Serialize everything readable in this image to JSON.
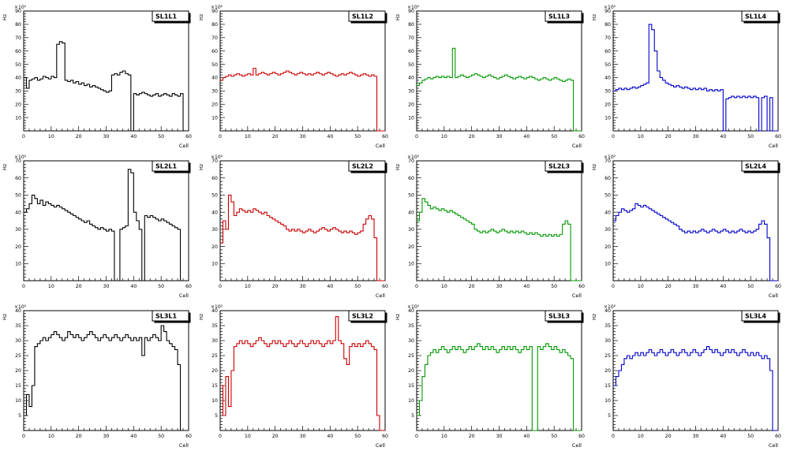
{
  "page": {
    "background": "#ffffff"
  },
  "axis": {
    "xlabel": "Cell",
    "ylabel": "Hz",
    "exponent": "×10²",
    "xlim": [
      0,
      60
    ],
    "xtick_step": 10,
    "grid": false,
    "legend": "none"
  },
  "chart_data": [
    {
      "type": "line",
      "style": "step-histogram",
      "title": "SL1L1",
      "color": "#000000",
      "xlabel": "Cell",
      "ylabel": "Hz",
      "xlim": [
        0,
        60
      ],
      "ylim": [
        0,
        90
      ],
      "ytick_step": 10,
      "values": [
        40,
        32,
        38,
        39,
        40,
        38,
        39,
        41,
        40,
        39,
        41,
        40,
        65,
        67,
        66,
        38,
        37,
        38,
        36,
        37,
        35,
        36,
        34,
        35,
        33,
        34,
        33,
        32,
        31,
        30,
        29,
        30,
        42,
        43,
        42,
        44,
        45,
        43,
        42,
        0,
        28,
        27,
        28,
        29,
        28,
        27,
        26,
        27,
        28,
        26,
        27,
        28,
        27,
        26,
        28,
        27,
        26,
        28,
        0,
        0
      ]
    },
    {
      "type": "line",
      "style": "step-histogram",
      "title": "SL1L2",
      "color": "#cc0000",
      "xlabel": "Cell",
      "ylabel": "Hz",
      "xlim": [
        0,
        60
      ],
      "ylim": [
        0,
        90
      ],
      "ytick_step": 10,
      "values": [
        38,
        40,
        41,
        42,
        41,
        42,
        43,
        42,
        41,
        42,
        43,
        42,
        47,
        42,
        43,
        44,
        43,
        42,
        43,
        44,
        43,
        42,
        43,
        44,
        45,
        44,
        43,
        42,
        43,
        44,
        43,
        42,
        43,
        42,
        43,
        44,
        43,
        42,
        43,
        44,
        43,
        42,
        41,
        42,
        43,
        42,
        43,
        44,
        43,
        42,
        41,
        42,
        43,
        42,
        41,
        42,
        41,
        0,
        0,
        0
      ]
    },
    {
      "type": "line",
      "style": "step-histogram",
      "title": "SL1L3",
      "color": "#009900",
      "xlabel": "Cell",
      "ylabel": "Hz",
      "xlim": [
        0,
        60
      ],
      "ylim": [
        0,
        90
      ],
      "ytick_step": 10,
      "values": [
        34,
        36,
        38,
        39,
        40,
        39,
        40,
        41,
        40,
        41,
        40,
        41,
        40,
        62,
        40,
        41,
        42,
        41,
        40,
        41,
        42,
        43,
        42,
        41,
        40,
        41,
        42,
        41,
        40,
        39,
        40,
        41,
        42,
        41,
        40,
        39,
        40,
        41,
        40,
        39,
        40,
        41,
        40,
        39,
        38,
        39,
        40,
        39,
        38,
        39,
        40,
        39,
        38,
        37,
        38,
        39,
        38,
        0,
        0,
        0
      ]
    },
    {
      "type": "line",
      "style": "step-histogram",
      "title": "SL1L4",
      "color": "#0000cc",
      "xlabel": "Cell",
      "ylabel": "Hz",
      "xlim": [
        0,
        60
      ],
      "ylim": [
        0,
        90
      ],
      "ytick_step": 10,
      "values": [
        30,
        31,
        32,
        31,
        32,
        31,
        32,
        33,
        32,
        33,
        34,
        35,
        36,
        80,
        76,
        60,
        45,
        40,
        38,
        36,
        35,
        34,
        33,
        34,
        33,
        32,
        33,
        32,
        31,
        32,
        31,
        32,
        31,
        32,
        30,
        31,
        30,
        31,
        30,
        31,
        0,
        24,
        25,
        26,
        25,
        26,
        25,
        26,
        25,
        26,
        25,
        26,
        25,
        0,
        25,
        26,
        0,
        25,
        0,
        0
      ]
    },
    {
      "type": "line",
      "style": "step-histogram",
      "title": "SL2L1",
      "color": "#000000",
      "xlabel": "Cell",
      "ylabel": "Hz",
      "xlim": [
        0,
        60
      ],
      "ylim": [
        0,
        70
      ],
      "ytick_step": 10,
      "values": [
        40,
        42,
        45,
        50,
        48,
        45,
        47,
        44,
        46,
        45,
        44,
        43,
        44,
        43,
        42,
        41,
        40,
        39,
        38,
        37,
        36,
        35,
        34,
        35,
        33,
        32,
        31,
        30,
        31,
        30,
        29,
        30,
        29,
        0,
        0,
        30,
        31,
        32,
        65,
        63,
        40,
        35,
        30,
        0,
        38,
        37,
        38,
        37,
        36,
        35,
        36,
        35,
        34,
        33,
        32,
        31,
        30,
        0,
        0,
        0
      ]
    },
    {
      "type": "line",
      "style": "step-histogram",
      "title": "SL2L2",
      "color": "#cc0000",
      "xlabel": "Cell",
      "ylabel": "Hz",
      "xlim": [
        0,
        60
      ],
      "ylim": [
        0,
        70
      ],
      "ytick_step": 10,
      "values": [
        22,
        35,
        30,
        50,
        46,
        38,
        40,
        42,
        41,
        40,
        41,
        40,
        42,
        41,
        40,
        39,
        40,
        38,
        37,
        36,
        35,
        34,
        33,
        32,
        30,
        29,
        30,
        29,
        30,
        29,
        28,
        29,
        30,
        29,
        28,
        29,
        30,
        31,
        30,
        29,
        30,
        31,
        30,
        29,
        28,
        29,
        28,
        29,
        28,
        27,
        28,
        29,
        33,
        36,
        38,
        36,
        25,
        0,
        0,
        0
      ]
    },
    {
      "type": "line",
      "style": "step-histogram",
      "title": "SL2L3",
      "color": "#009900",
      "xlabel": "Cell",
      "ylabel": "Hz",
      "xlim": [
        0,
        60
      ],
      "ylim": [
        0,
        70
      ],
      "ytick_step": 10,
      "values": [
        35,
        40,
        48,
        46,
        44,
        42,
        43,
        42,
        41,
        42,
        41,
        40,
        41,
        40,
        39,
        38,
        37,
        36,
        35,
        34,
        33,
        30,
        29,
        28,
        29,
        28,
        29,
        30,
        29,
        28,
        29,
        30,
        29,
        28,
        29,
        28,
        29,
        28,
        29,
        28,
        27,
        28,
        27,
        28,
        27,
        26,
        27,
        26,
        27,
        26,
        27,
        26,
        27,
        33,
        35,
        33,
        0,
        0,
        0,
        0
      ]
    },
    {
      "type": "line",
      "style": "step-histogram",
      "title": "SL2L4",
      "color": "#0000cc",
      "xlabel": "Cell",
      "ylabel": "Hz",
      "xlim": [
        0,
        60
      ],
      "ylim": [
        0,
        70
      ],
      "ytick_step": 10,
      "values": [
        35,
        38,
        40,
        42,
        41,
        40,
        41,
        42,
        45,
        44,
        43,
        44,
        43,
        42,
        41,
        40,
        39,
        38,
        37,
        36,
        35,
        34,
        33,
        32,
        30,
        29,
        28,
        29,
        28,
        29,
        28,
        29,
        30,
        29,
        28,
        29,
        30,
        29,
        28,
        29,
        30,
        29,
        28,
        29,
        28,
        29,
        30,
        29,
        28,
        29,
        28,
        29,
        30,
        33,
        35,
        33,
        25,
        0,
        0,
        0
      ]
    },
    {
      "type": "line",
      "style": "step-histogram",
      "title": "SL3L1",
      "color": "#000000",
      "xlabel": "Cell",
      "ylabel": "Hz",
      "xlim": [
        0,
        60
      ],
      "ylim": [
        0,
        40
      ],
      "ytick_step": 5,
      "values": [
        5,
        12,
        8,
        15,
        28,
        29,
        30,
        31,
        30,
        31,
        32,
        33,
        32,
        31,
        30,
        31,
        33,
        32,
        31,
        32,
        31,
        30,
        31,
        32,
        33,
        32,
        31,
        30,
        31,
        32,
        31,
        30,
        31,
        32,
        31,
        30,
        31,
        32,
        31,
        30,
        31,
        30,
        31,
        25,
        31,
        30,
        31,
        32,
        31,
        30,
        35,
        33,
        30,
        29,
        28,
        27,
        22,
        0,
        0,
        0
      ]
    },
    {
      "type": "line",
      "style": "step-histogram",
      "title": "SL3L2",
      "color": "#cc0000",
      "xlabel": "Cell",
      "ylabel": "Hz",
      "xlim": [
        0,
        60
      ],
      "ylim": [
        0,
        40
      ],
      "ytick_step": 5,
      "values": [
        15,
        5,
        18,
        8,
        20,
        28,
        29,
        30,
        29,
        30,
        29,
        28,
        29,
        30,
        31,
        30,
        29,
        28,
        29,
        30,
        29,
        30,
        29,
        28,
        29,
        30,
        29,
        28,
        29,
        30,
        29,
        28,
        29,
        30,
        29,
        30,
        29,
        28,
        29,
        30,
        29,
        30,
        38,
        30,
        29,
        24,
        22,
        28,
        29,
        28,
        29,
        28,
        29,
        30,
        29,
        28,
        27,
        5,
        0,
        0
      ]
    },
    {
      "type": "line",
      "style": "step-histogram",
      "title": "SL3L3",
      "color": "#009900",
      "xlabel": "Cell",
      "ylabel": "Hz",
      "xlim": [
        0,
        60
      ],
      "ylim": [
        0,
        40
      ],
      "ytick_step": 5,
      "values": [
        5,
        10,
        18,
        22,
        25,
        26,
        27,
        26,
        27,
        28,
        27,
        26,
        27,
        28,
        27,
        28,
        27,
        26,
        27,
        28,
        27,
        28,
        29,
        28,
        27,
        28,
        27,
        28,
        27,
        26,
        27,
        28,
        27,
        28,
        27,
        28,
        27,
        26,
        27,
        28,
        27,
        28,
        0,
        0,
        28,
        27,
        28,
        29,
        28,
        27,
        28,
        27,
        26,
        27,
        26,
        25,
        24,
        0,
        0,
        0
      ]
    },
    {
      "type": "line",
      "style": "step-histogram",
      "title": "SL3L4",
      "color": "#0000cc",
      "xlabel": "Cell",
      "ylabel": "Hz",
      "xlim": [
        0,
        60
      ],
      "ylim": [
        0,
        40
      ],
      "ytick_step": 5,
      "values": [
        15,
        18,
        20,
        22,
        24,
        25,
        24,
        25,
        26,
        25,
        26,
        25,
        26,
        27,
        26,
        25,
        26,
        27,
        26,
        25,
        26,
        27,
        26,
        25,
        26,
        27,
        26,
        25,
        26,
        27,
        26,
        25,
        26,
        27,
        28,
        27,
        26,
        27,
        26,
        25,
        26,
        27,
        26,
        27,
        26,
        25,
        26,
        27,
        26,
        25,
        26,
        25,
        26,
        25,
        24,
        25,
        24,
        20,
        0,
        0
      ]
    }
  ]
}
